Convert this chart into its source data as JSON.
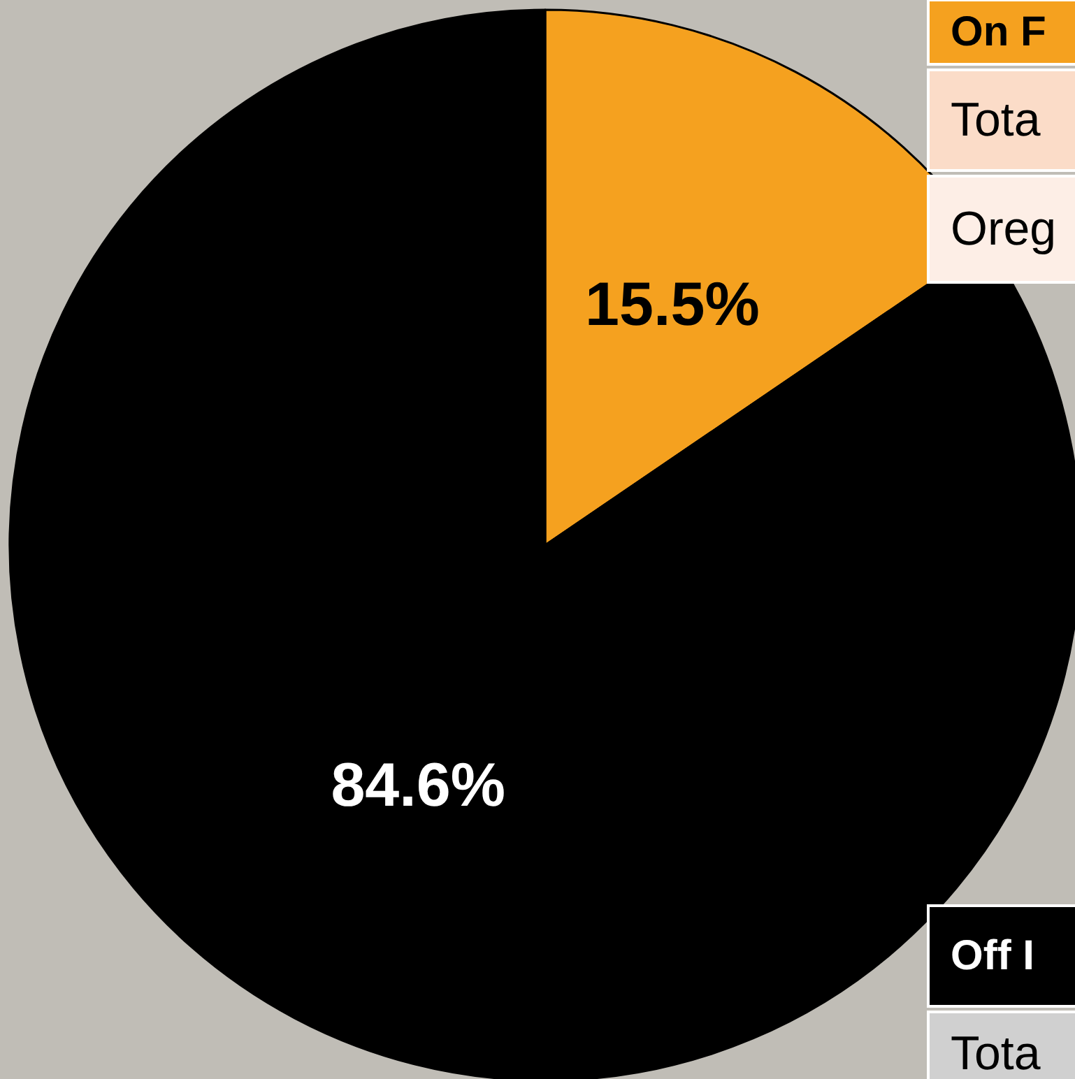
{
  "chart_data": {
    "type": "pie",
    "categories": [
      null,
      null
    ],
    "values": [
      15.5,
      84.6
    ],
    "colors": [
      "#f5a11f",
      "#000000"
    ],
    "value_labels": [
      "15.5%",
      "84.6%"
    ],
    "annotations": [
      "On F",
      "Tota",
      "Oreg",
      "Off I",
      "Tota"
    ]
  }
}
